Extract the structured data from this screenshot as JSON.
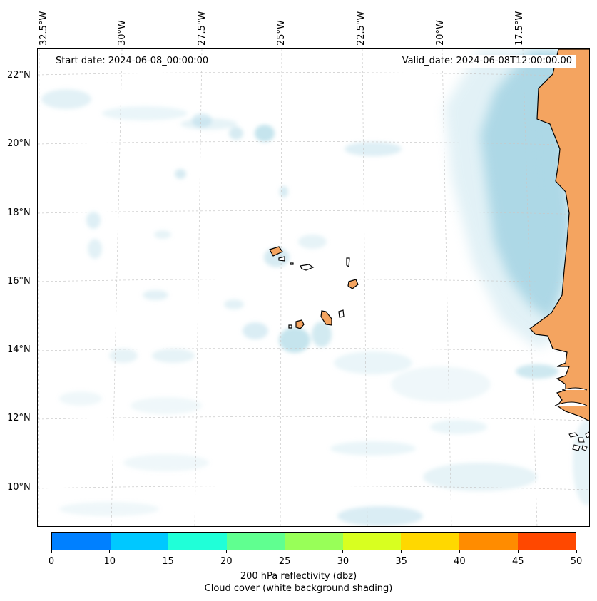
{
  "map": {
    "start_date": "Start date: 2024-06-08_00:00:00",
    "valid_date": "Valid_date: 2024-06-08T12:00:00.00",
    "lon_labels": [
      "32.5°W",
      "30°W",
      "27.5°W",
      "25°W",
      "22.5°W",
      "20°W",
      "17.5°W"
    ],
    "lat_labels": [
      "22°N",
      "20°N",
      "18°N",
      "16°N",
      "14°N",
      "12°N",
      "10°N"
    ],
    "colors": {
      "land": "#f4a460",
      "cloud": "#add8e6",
      "coastline": "#000000",
      "grid": "#c8c8c8"
    }
  },
  "colorbar": {
    "ticks": [
      "0",
      "10",
      "15",
      "20",
      "25",
      "30",
      "35",
      "40",
      "45",
      "50"
    ],
    "colors": [
      "#0080ff",
      "#00c8ff",
      "#20ffd8",
      "#60ff90",
      "#98ff58",
      "#d8ff20",
      "#ffd800",
      "#ff8c00",
      "#ff4800"
    ],
    "label_line1": "200 hPa reflectivity (dbz)",
    "label_line2": "Cloud cover (white background shading)"
  }
}
